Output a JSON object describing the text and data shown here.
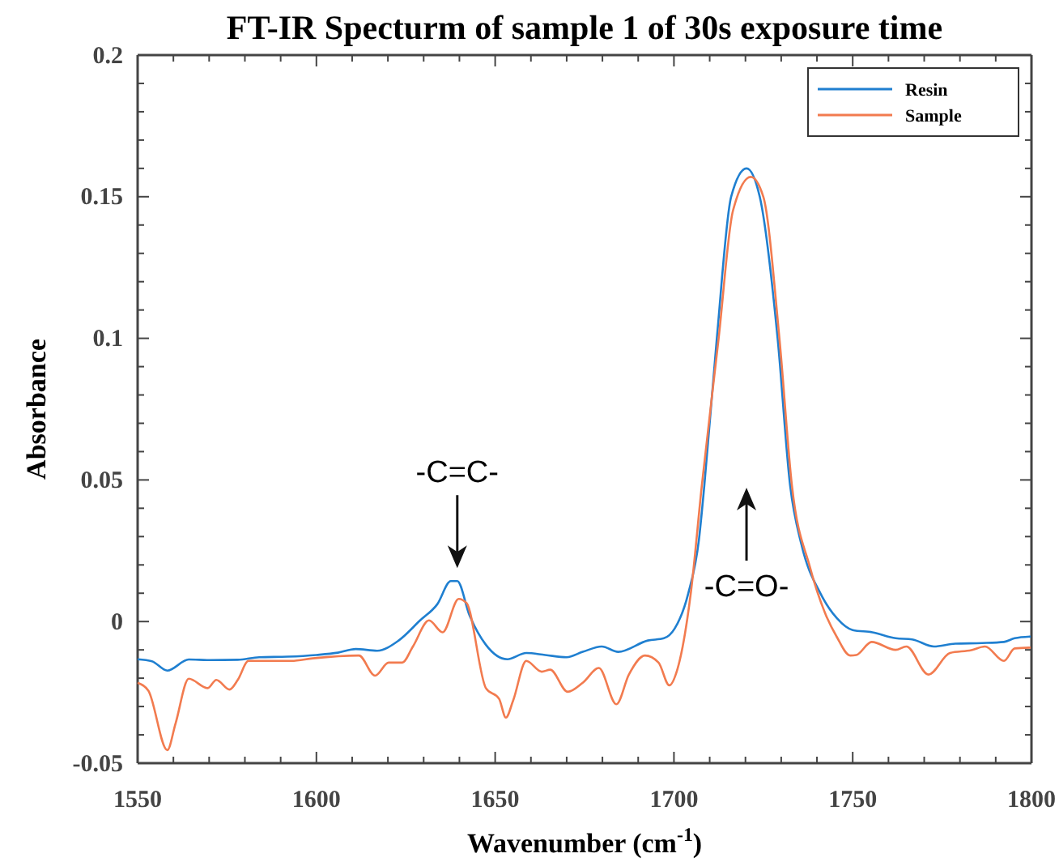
{
  "chart_data": {
    "type": "line",
    "title": "FT-IR Specturm of sample 1 of 30s exposure time",
    "xlabel": "Wavenumber (cm$^{-1}$)",
    "ylabel": "Absorbance",
    "xlim": [
      1550,
      1800
    ],
    "xticks": [
      1550,
      {
        "value": 1560,
        "label": null
      },
      {
        "value": 1570,
        "label": null
      },
      {
        "value": 1580,
        "label": null
      },
      {
        "value": 1590,
        "label": null
      },
      1600,
      {
        "value": 1610,
        "label": null
      },
      {
        "value": 1620,
        "label": null
      },
      {
        "value": 1630,
        "label": null
      },
      {
        "value": 1640,
        "label": null
      },
      1650,
      {
        "value": 1660,
        "label": null
      },
      {
        "value": 1670,
        "label": null
      },
      {
        "value": 1680,
        "label": null
      },
      {
        "value": 1690,
        "label": null
      },
      1700,
      {
        "value": 1710,
        "label": null
      },
      {
        "value": 1720,
        "label": null
      },
      {
        "value": 1730,
        "label": null
      },
      {
        "value": 1740,
        "label": null
      },
      1750,
      {
        "value": 1760,
        "label": null
      },
      {
        "value": 1770,
        "label": null
      },
      {
        "value": 1780,
        "label": null
      },
      {
        "value": 1790,
        "label": null
      },
      1800
    ],
    "ylim": [
      -0.05,
      0.2
    ],
    "yticks": [
      -0.05,
      {
        "value": -0.04,
        "label": null
      },
      {
        "value": -0.03,
        "label": null
      },
      {
        "value": -0.02,
        "label": null
      },
      {
        "value": -0.01,
        "label": null
      },
      0,
      {
        "value": 0.01,
        "label": null
      },
      {
        "value": 0.02,
        "label": null
      },
      {
        "value": 0.03,
        "label": null
      },
      {
        "value": 0.04,
        "label": null
      },
      0.05,
      {
        "value": 0.06,
        "label": null
      },
      {
        "value": 0.07,
        "label": null
      },
      {
        "value": 0.08,
        "label": null
      },
      {
        "value": 0.09,
        "label": null
      },
      0.1,
      {
        "value": 0.11,
        "label": null
      },
      {
        "value": 0.12,
        "label": null
      },
      {
        "value": 0.13,
        "label": null
      },
      {
        "value": 0.14,
        "label": null
      },
      0.15,
      {
        "value": 0.16,
        "label": null
      },
      {
        "value": 0.17,
        "label": null
      },
      {
        "value": 0.18,
        "label": null
      },
      {
        "value": 0.19,
        "label": null
      },
      0.2
    ],
    "grid": false,
    "legend": "top right",
    "marker": "none",
    "line_style": "solid",
    "annotations": [
      {
        "text": "-C=C-",
        "x": 1639.4,
        "y": 0.0143
      },
      "-C=O-"
    ],
    "series": [
      {
        "name": "Resin",
        "color": "#1f7fd0",
        "x": [
          1550,
          1554,
          1558.3,
          1564.3,
          1570,
          1578,
          1584,
          1592,
          1600,
          1606,
          1611,
          1617,
          1623,
          1629,
          1633.8,
          1637.6,
          1639.4,
          1642.8,
          1647.4,
          1653.4,
          1658.7,
          1664,
          1670,
          1674.5,
          1679.8,
          1684.4,
          1692.7,
          1697.2,
          1700.2,
          1704,
          1707,
          1708.5,
          1712,
          1716,
          1720.3,
          1724,
          1729,
          1732.5,
          1735.7,
          1741,
          1745.5,
          1750,
          1755.5,
          1762,
          1766.6,
          1772.7,
          1778.7,
          1786.2,
          1792.3,
          1795.3,
          1799.8
        ],
        "values": [
          -0.0133,
          -0.014,
          -0.0173,
          -0.0134,
          -0.0136,
          -0.0135,
          -0.0126,
          -0.0124,
          -0.0118,
          -0.011,
          -0.0097,
          -0.0103,
          -0.0067,
          0.0004,
          0.0061,
          0.0143,
          0.0143,
          0.0023,
          -0.0082,
          -0.0133,
          -0.0111,
          -0.0118,
          -0.0126,
          -0.0107,
          -0.0088,
          -0.0107,
          -0.0067,
          -0.0059,
          -0.0025,
          0.0099,
          0.029,
          0.048,
          0.1,
          0.15,
          0.16,
          0.15,
          0.1,
          0.048,
          0.027,
          0.0099,
          0.0013,
          -0.003,
          -0.0038,
          -0.0059,
          -0.0063,
          -0.0088,
          -0.0078,
          -0.0076,
          -0.0072,
          -0.0059,
          -0.0053
        ]
      },
      {
        "name": "Sample",
        "color": "#f27b4f",
        "x": [
          1550,
          1553,
          1558.3,
          1560.6,
          1564.3,
          1569.6,
          1572,
          1575.7,
          1578,
          1581,
          1593,
          1599,
          1611.9,
          1616.4,
          1620.2,
          1624,
          1627,
          1631.5,
          1635.3,
          1639.8,
          1642,
          1647.4,
          1651.1,
          1653,
          1655,
          1658.7,
          1663,
          1665.4,
          1670.3,
          1674.5,
          1679,
          1683.9,
          1687.4,
          1691.9,
          1695.7,
          1698.7,
          1701,
          1704.7,
          1707.8,
          1712.5,
          1716.5,
          1721.5,
          1725,
          1729.5,
          1733,
          1738,
          1742.5,
          1745.5,
          1749.3,
          1751,
          1755.3,
          1762,
          1765,
          1771.2,
          1777.2,
          1783.2,
          1787,
          1792.3,
          1795.3,
          1799.8
        ],
        "values": [
          -0.0216,
          -0.0244,
          -0.0454,
          -0.036,
          -0.0202,
          -0.0235,
          -0.0206,
          -0.024,
          -0.0206,
          -0.0139,
          -0.0139,
          -0.013,
          -0.012,
          -0.0191,
          -0.0145,
          -0.0145,
          -0.0088,
          0.0004,
          -0.0038,
          0.008,
          0.0065,
          -0.0235,
          -0.0273,
          -0.0339,
          -0.028,
          -0.0139,
          -0.0177,
          -0.017,
          -0.0248,
          -0.0216,
          -0.0164,
          -0.0292,
          -0.0187,
          -0.012,
          -0.0145,
          -0.0225,
          -0.0167,
          0.0099,
          0.048,
          0.1,
          0.145,
          0.157,
          0.15,
          0.1,
          0.048,
          0.0194,
          0.0023,
          -0.0053,
          -0.012,
          -0.0118,
          -0.0072,
          -0.01,
          -0.0088,
          -0.0187,
          -0.0111,
          -0.0101,
          -0.0088,
          -0.0139,
          -0.0095,
          -0.0092
        ]
      }
    ]
  }
}
